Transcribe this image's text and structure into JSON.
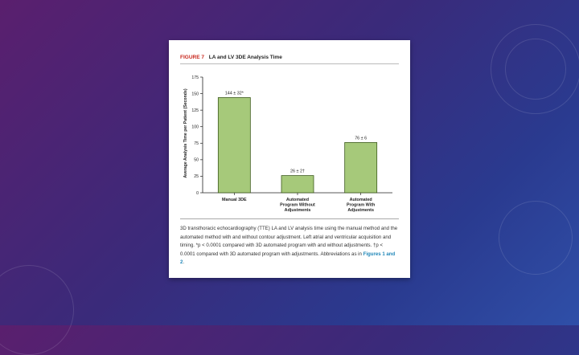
{
  "figure": {
    "label": "FIGURE 7",
    "title": "LA and LV 3DE Analysis Time"
  },
  "chart_data": {
    "type": "bar",
    "ylabel": "Average Analysis Time per Patient (Seconds)",
    "xlabel": "",
    "ylim": [
      0,
      175
    ],
    "yticks": [
      0,
      25,
      50,
      75,
      100,
      125,
      150,
      175
    ],
    "categories": [
      [
        "Manual 3DE"
      ],
      [
        "Automated",
        "Program Without",
        "Adjustments"
      ],
      [
        "Automated",
        "Program With",
        "Adjustments"
      ]
    ],
    "values": [
      144,
      26,
      76
    ],
    "data_labels": [
      "144 ± 32*",
      "26 ± 2†",
      "76 ± 6"
    ],
    "bar_color": "#a6c97a",
    "bar_stroke": "#3c5a1c",
    "grid": false
  },
  "caption": {
    "text": "3D transthoracic echocardiography (TTE) LA and LV analysis time using the manual method and the automated method with and without contour adjustment. Left atrial and ventricular acquisition and timing. *p < 0.0001 compared with 3D automated program with and without adjustments. †p < 0.0001 compared with 3D automated program with adjustments. Abbreviations as in ",
    "link": "Figures 1 and 2",
    "end": "."
  },
  "colors": {
    "figure_label": "#c8281e",
    "link": "#1f86b8"
  }
}
